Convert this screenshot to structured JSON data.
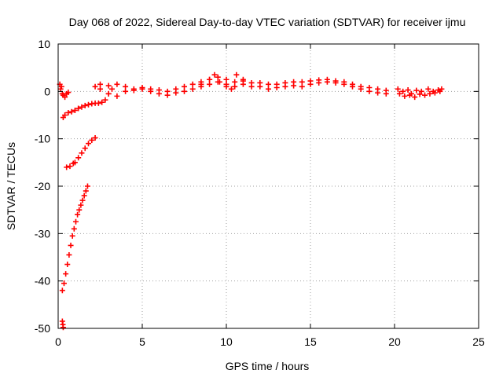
{
  "chart_data": {
    "type": "scatter",
    "title": "Day 068 of 2022, Sidereal Day-to-day VTEC variation (SDTVAR) for receiver ijmu",
    "xlabel": "GPS time / hours",
    "ylabel": "SDTVAR / TECUs",
    "xlim": [
      0,
      25
    ],
    "ylim": [
      -50,
      10
    ],
    "xticks": [
      0,
      5,
      10,
      15,
      20,
      25
    ],
    "yticks": [
      -50,
      -40,
      -30,
      -20,
      -10,
      0,
      10
    ],
    "grid": true,
    "marker": "plus",
    "color": "#ff0000",
    "series": [
      {
        "x": [
          0.1,
          0.15,
          0.2,
          0.25,
          0.3,
          0.4,
          0.5,
          0.6
        ],
        "y": [
          1.5,
          0.5,
          1.0,
          -0.5,
          -0.8,
          -1.2,
          -0.5,
          -0.2
        ]
      },
      {
        "x": [
          0.3,
          0.4,
          0.6,
          0.8,
          1.0,
          1.2,
          1.4,
          1.6,
          1.8,
          2.0,
          2.2,
          2.4,
          2.6,
          2.8,
          3.0,
          3.2
        ],
        "y": [
          -5.5,
          -5.0,
          -4.5,
          -4.3,
          -4.0,
          -3.6,
          -3.3,
          -3.0,
          -2.8,
          -2.6,
          -2.5,
          -2.5,
          -2.3,
          -1.8,
          -0.5,
          0.5
        ]
      },
      {
        "x": [
          0.5,
          0.7,
          0.9,
          1.0,
          1.2,
          1.4,
          1.6,
          1.8,
          2.0,
          2.2
        ],
        "y": [
          -16.0,
          -15.8,
          -15.2,
          -15.0,
          -14.0,
          -13.0,
          -12.0,
          -11.0,
          -10.3,
          -9.8
        ]
      },
      {
        "x": [
          0.25,
          0.35,
          0.45,
          0.55,
          0.65,
          0.75,
          0.85,
          0.95,
          1.05,
          1.15,
          1.25,
          1.35,
          1.45,
          1.55,
          1.65,
          1.75
        ],
        "y": [
          -42.0,
          -40.5,
          -38.5,
          -36.5,
          -34.5,
          -32.5,
          -30.5,
          -29.0,
          -27.5,
          -26.0,
          -25.0,
          -24.0,
          -23.0,
          -22.0,
          -21.0,
          -20.0
        ]
      },
      {
        "x": [
          0.25,
          0.28,
          0.3
        ],
        "y": [
          -48.5,
          -49.2,
          -49.8
        ]
      },
      {
        "x": [
          2.2,
          2.5,
          3.0,
          3.5,
          4.0,
          4.5,
          5.0,
          5.5,
          6.0,
          6.5,
          7.0,
          7.5,
          8.0,
          8.5,
          9.0,
          9.5,
          10.0,
          10.5,
          11.0,
          11.5,
          12.0,
          12.5,
          13.0,
          13.5,
          14.0,
          14.5,
          15.0,
          15.5,
          16.0,
          16.5,
          17.0,
          17.5,
          18.0,
          18.5,
          19.0,
          19.5
        ],
        "y": [
          1.0,
          1.5,
          1.2,
          1.5,
          1.0,
          0.5,
          0.8,
          0.5,
          0.3,
          0.0,
          0.5,
          1.0,
          1.5,
          2.0,
          2.5,
          3.0,
          2.5,
          2.0,
          2.2,
          1.8,
          1.8,
          1.5,
          1.5,
          1.8,
          2.0,
          2.0,
          2.2,
          2.4,
          2.5,
          2.2,
          2.0,
          1.5,
          1.0,
          0.8,
          0.5,
          0.2
        ]
      },
      {
        "x": [
          2.5,
          3.0,
          3.5,
          4.0,
          4.5,
          5.0,
          5.5,
          6.0,
          6.5,
          7.0,
          7.5,
          8.0,
          8.5,
          9.0,
          9.5,
          10.0,
          10.5,
          11.0,
          11.5,
          12.0,
          12.5,
          13.0,
          13.5,
          14.0,
          14.5,
          15.0,
          15.5,
          16.0,
          16.5,
          17.0,
          17.5,
          18.0,
          18.5,
          19.0,
          19.5
        ],
        "y": [
          0.5,
          -0.5,
          -1.0,
          0.0,
          0.2,
          0.5,
          0.0,
          -0.5,
          -0.8,
          -0.3,
          0.0,
          0.5,
          1.0,
          1.5,
          2.0,
          1.5,
          1.0,
          1.5,
          1.0,
          1.0,
          0.5,
          0.8,
          1.0,
          1.2,
          1.0,
          1.5,
          1.8,
          2.0,
          1.8,
          1.5,
          1.0,
          0.5,
          0.0,
          -0.3,
          -0.5
        ]
      },
      {
        "x": [
          8.5,
          9.0,
          9.3,
          9.6,
          10.0,
          10.3,
          10.6,
          11.0
        ],
        "y": [
          1.5,
          2.5,
          3.5,
          2.0,
          1.0,
          0.5,
          3.5,
          2.5
        ]
      },
      {
        "x": [
          20.2,
          20.5,
          20.8,
          21.0,
          21.3,
          21.6,
          22.0,
          22.3,
          22.6,
          22.8
        ],
        "y": [
          0.5,
          0.0,
          0.3,
          -0.5,
          0.2,
          0.0,
          0.5,
          0.0,
          0.3,
          0.5
        ]
      },
      {
        "x": [
          20.3,
          20.6,
          20.9,
          21.2,
          21.5,
          21.8,
          22.1,
          22.4,
          22.7
        ],
        "y": [
          -0.5,
          -1.0,
          -0.8,
          -1.2,
          -0.6,
          -0.8,
          -0.5,
          -0.3,
          0.0
        ]
      }
    ]
  }
}
